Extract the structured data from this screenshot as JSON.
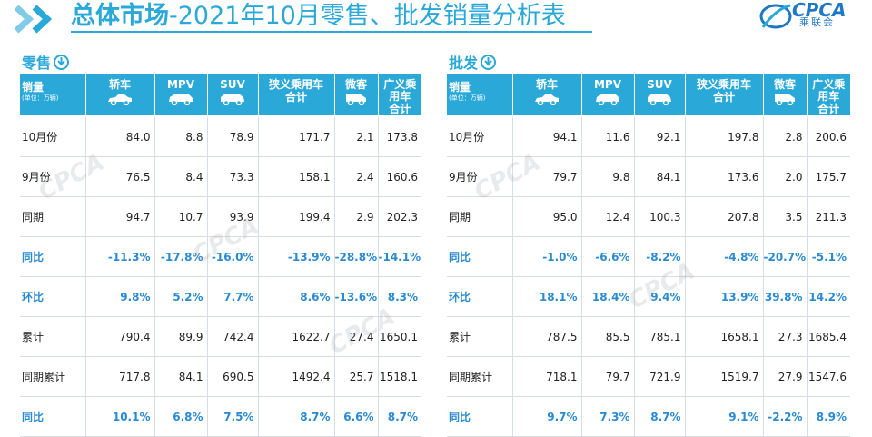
{
  "header": {
    "title_bold": "总体市场",
    "title_rest": "-2021年10月零售、批发销量分析表",
    "logo_text": "CPCA",
    "logo_sub": "乘联会"
  },
  "columns": {
    "first_main": "销量",
    "first_unit": "(单位：万辆)",
    "sedan": "轿车",
    "mpv": "MPV",
    "suv": "SUV",
    "narrow_l1": "狭义乘用车",
    "narrow_l2": "合计",
    "micro": "微客",
    "broad_l1": "广义乘用车",
    "broad_l2": "合计"
  },
  "retail": {
    "label": "零售",
    "rows": [
      {
        "label": "10月份",
        "v": [
          "84.0",
          "8.8",
          "78.9",
          "171.7",
          "2.1",
          "173.8"
        ]
      },
      {
        "label": "9月份",
        "v": [
          "76.5",
          "8.4",
          "73.3",
          "158.1",
          "2.4",
          "160.6"
        ]
      },
      {
        "label": "同期",
        "v": [
          "94.7",
          "10.7",
          "93.9",
          "199.4",
          "2.9",
          "202.3"
        ]
      },
      {
        "label": "同比",
        "v": [
          "-11.3%",
          "-17.8%",
          "-16.0%",
          "-13.9%",
          "-28.8%",
          "-14.1%"
        ]
      },
      {
        "label": "环比",
        "v": [
          "9.8%",
          "5.2%",
          "7.7%",
          "8.6%",
          "-13.6%",
          "8.3%"
        ]
      },
      {
        "label": "累计",
        "v": [
          "790.4",
          "89.9",
          "742.4",
          "1622.7",
          "27.4",
          "1650.1"
        ]
      },
      {
        "label": "同期累计",
        "v": [
          "717.8",
          "84.1",
          "690.5",
          "1492.4",
          "25.7",
          "1518.1"
        ]
      },
      {
        "label": "同比",
        "v": [
          "10.1%",
          "6.8%",
          "7.5%",
          "8.7%",
          "6.6%",
          "8.7%"
        ]
      }
    ]
  },
  "wholesale": {
    "label": "批发",
    "rows": [
      {
        "label": "10月份",
        "v": [
          "94.1",
          "11.6",
          "92.1",
          "197.8",
          "2.8",
          "200.6"
        ]
      },
      {
        "label": "9月份",
        "v": [
          "79.7",
          "9.8",
          "84.1",
          "173.6",
          "2.0",
          "175.7"
        ]
      },
      {
        "label": "同期",
        "v": [
          "95.0",
          "12.4",
          "100.3",
          "207.8",
          "3.5",
          "211.3"
        ]
      },
      {
        "label": "同比",
        "v": [
          "-1.0%",
          "-6.6%",
          "-8.2%",
          "-4.8%",
          "-20.7%",
          "-5.1%"
        ]
      },
      {
        "label": "环比",
        "v": [
          "18.1%",
          "18.4%",
          "9.4%",
          "13.9%",
          "39.8%",
          "14.2%"
        ]
      },
      {
        "label": "累计",
        "v": [
          "787.5",
          "85.5",
          "785.1",
          "1658.1",
          "27.3",
          "1685.4"
        ]
      },
      {
        "label": "同期累计",
        "v": [
          "718.1",
          "79.7",
          "721.9",
          "1519.7",
          "27.9",
          "1547.6"
        ]
      },
      {
        "label": "同比",
        "v": [
          "9.7%",
          "7.3%",
          "8.7%",
          "9.1%",
          "-2.2%",
          "8.9%"
        ]
      }
    ]
  },
  "colors": {
    "accent": "#2aa8d8",
    "pct_text": "#2a8ad0"
  }
}
